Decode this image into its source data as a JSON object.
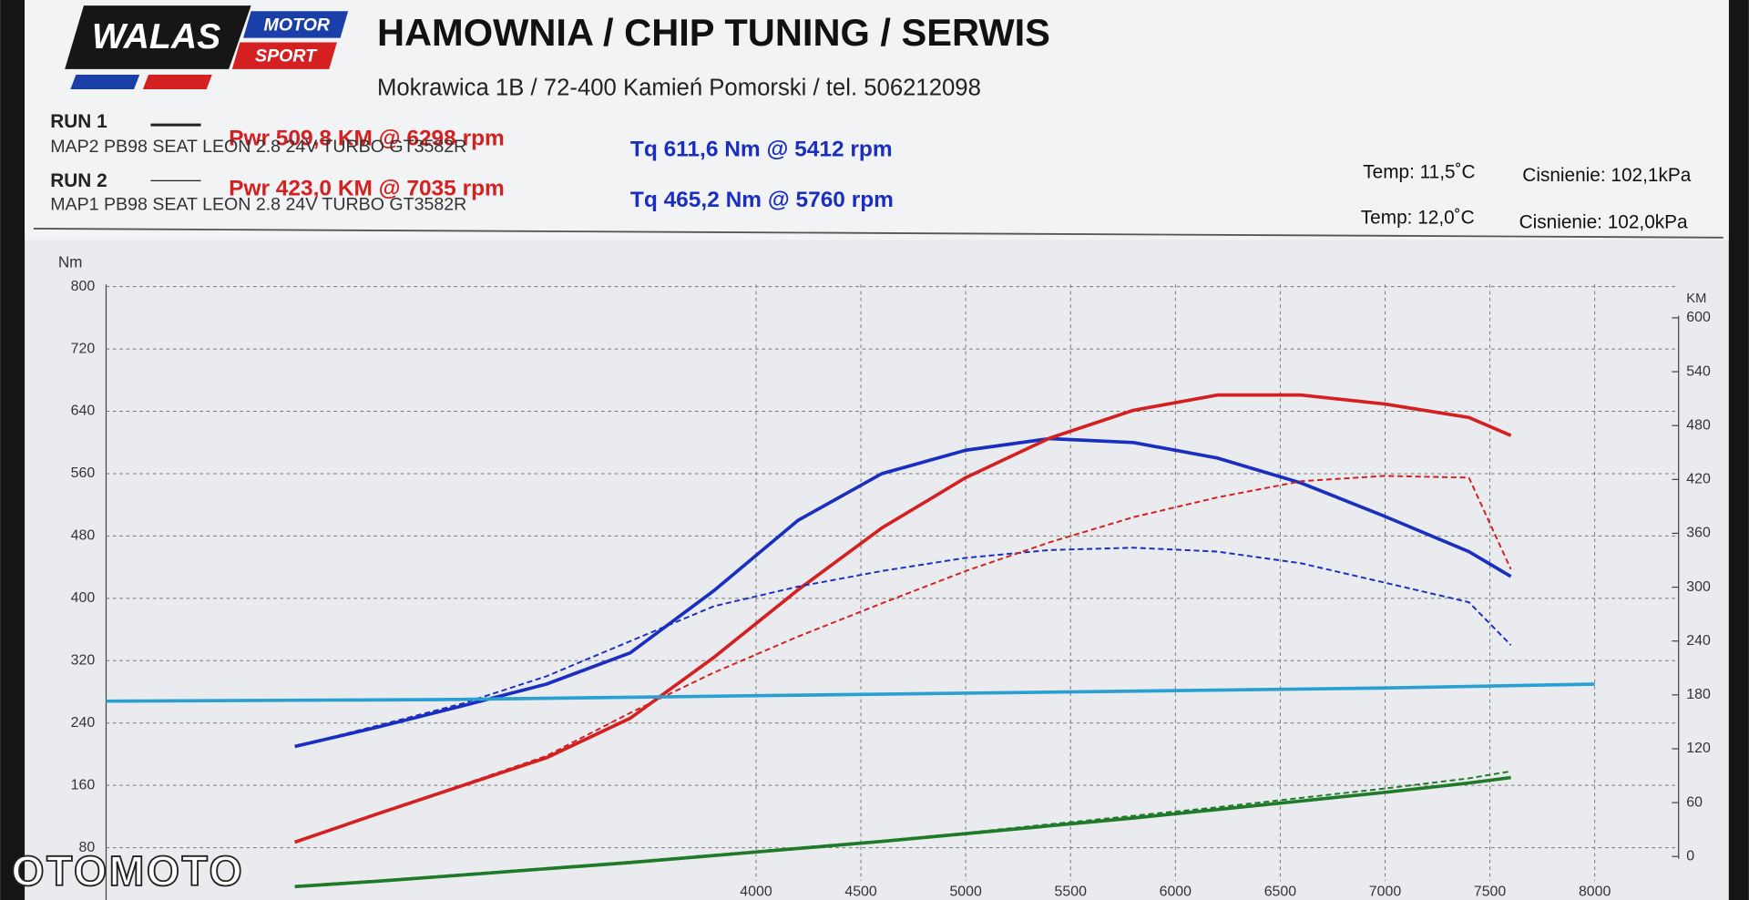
{
  "logo": {
    "name": "WALAS",
    "motor": "MOTOR",
    "sport": "SPORT"
  },
  "header": {
    "title": "HAMOWNIA / CHIP TUNING / SERWIS",
    "address": "Mokrawica 1B / 72-400 Kamień Pomorski / tel. 506212098"
  },
  "runs": [
    {
      "label": "RUN 1",
      "power": "Pwr  509,8 KM @ 6298 rpm",
      "map": "MAP2 PB98 SEAT LEON 2.8 24V TURBO GT3582R",
      "torque": "Tq 611,6 Nm @ 5412 rpm",
      "temp": "Temp: 11,5˚C",
      "pressure": "Cisnienie: 102,1kPa"
    },
    {
      "label": "RUN 2",
      "power": "Pwr  423,0 KM @ 7035 rpm",
      "map": "MAP1 PB98 SEAT LEON 2.8 24V TURBO GT3582R",
      "torque": "Tq 465,2 Nm @ 5760 rpm",
      "temp": "Temp: 12,0˚C",
      "pressure": "Cisnienie: 102,0kPa"
    }
  ],
  "watermark": "OTOMOTO",
  "chart_data": {
    "type": "line",
    "y_label": "Nm",
    "y2_label": "KM",
    "grid": true,
    "xlim": [
      900,
      8400
    ],
    "xticks": [
      4000,
      4500,
      5000,
      5500,
      6000,
      6500,
      7000,
      7500,
      8000
    ],
    "ylim": [
      0,
      800
    ],
    "yticks": [
      80,
      160,
      240,
      320,
      400,
      480,
      560,
      640,
      720,
      800
    ],
    "y2lim": [
      0,
      600
    ],
    "y2ticks": [
      0,
      60,
      120,
      180,
      240,
      300,
      360,
      420,
      480,
      540,
      600
    ],
    "x": [
      1800,
      2200,
      2600,
      3000,
      3400,
      3800,
      4200,
      4600,
      5000,
      5400,
      5800,
      6200,
      6600,
      7000,
      7400,
      7600
    ],
    "series": [
      {
        "color": "#1a2fc0",
        "dashed": false,
        "axis": "y",
        "values": [
          210,
          235,
          262,
          290,
          330,
          410,
          500,
          560,
          590,
          605,
          600,
          580,
          548,
          505,
          460,
          428
        ]
      },
      {
        "color": "#d42020",
        "dashed": false,
        "axis": "y2",
        "values": [
          16,
          48,
          79,
          110,
          154,
          222,
          297,
          366,
          422,
          466,
          497,
          514,
          514,
          504,
          489,
          469
        ]
      },
      {
        "color": "#1a2fc0",
        "dashed": true,
        "axis": "y",
        "values": [
          210,
          237,
          265,
          300,
          345,
          390,
          415,
          435,
          452,
          462,
          465,
          460,
          445,
          420,
          395,
          340
        ]
      },
      {
        "color": "#d42020",
        "dashed": true,
        "axis": "y2",
        "values": [
          16,
          48,
          80,
          112,
          160,
          205,
          245,
          282,
          318,
          350,
          378,
          400,
          418,
          424,
          422,
          320
        ]
      },
      {
        "color": "#1f7a2a",
        "dashed": false,
        "axis": "y",
        "values": [
          30,
          37,
          45,
          53,
          61,
          70,
          79,
          88,
          98,
          108,
          118,
          129,
          140,
          151,
          163,
          170
        ]
      },
      {
        "color": "#1f7a2a",
        "dashed": true,
        "axis": "y",
        "values": [
          31,
          38,
          46,
          54,
          62,
          71,
          80,
          89,
          99,
          110,
          121,
          132,
          144,
          156,
          169,
          178
        ]
      },
      {
        "color": "#2aa0d0",
        "dashed": false,
        "axis": "y",
        "x": [
          900,
          2500,
          4000,
          5500,
          7000,
          8000
        ],
        "values": [
          268,
          270,
          275,
          280,
          285,
          290
        ]
      }
    ]
  }
}
